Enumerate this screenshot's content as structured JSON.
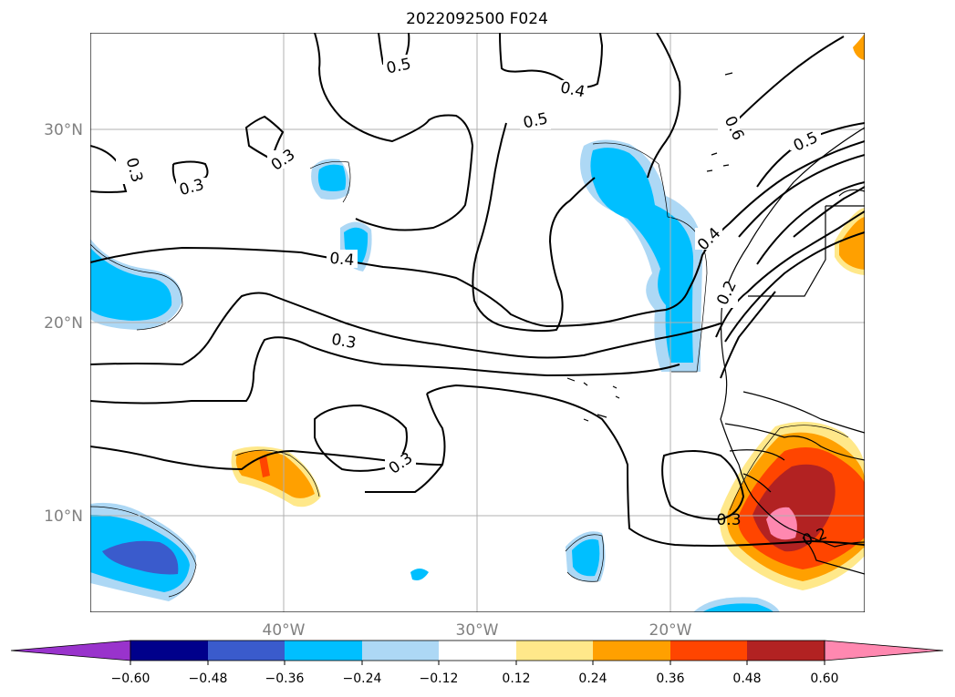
{
  "title": "2022092500 F024",
  "lat_labels": [
    "30°N",
    "20°N",
    "10°N"
  ],
  "lon_labels": [
    "40°W",
    "30°W",
    "20°W"
  ],
  "colorbar": {
    "ticks": [
      "−0.60",
      "−0.48",
      "−0.36",
      "−0.24",
      "−0.12",
      "0.12",
      "0.24",
      "0.36",
      "0.48",
      "0.60"
    ],
    "colors": [
      "#9933cc",
      "#00008b",
      "#3a5bcc",
      "#00bfff",
      "#add8f5",
      "#ffffff",
      "#ffe88a",
      "#ffa000",
      "#ff4500",
      "#b22222",
      "#ff88b0"
    ],
    "extend": "both"
  },
  "contour_labels": [
    "0.5",
    "0.4",
    "0.5",
    "0.3",
    "0.3",
    "0.3",
    "0.6",
    "0.5",
    "0.4",
    "0.2",
    "0.4",
    "0.3",
    "0.3",
    "0.3",
    "0.2"
  ],
  "map_extent": {
    "lon": [
      -50,
      -10
    ],
    "lat": [
      5,
      35
    ]
  }
}
